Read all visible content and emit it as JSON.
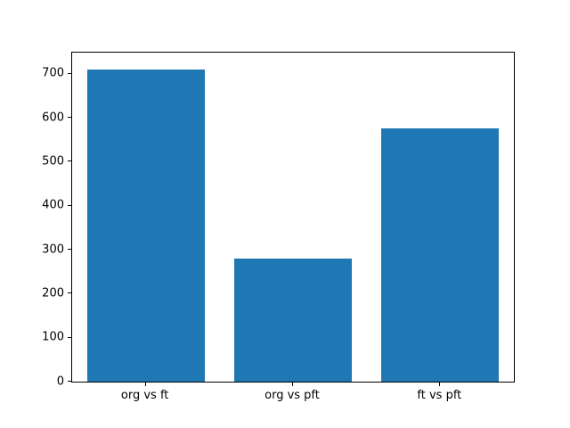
{
  "chart_data": {
    "type": "bar",
    "title": "",
    "xlabel": "",
    "ylabel": "",
    "categories": [
      "org vs ft",
      "org vs pft",
      "ft vs pft"
    ],
    "values": [
      710,
      280,
      575
    ],
    "ylim": [
      0,
      748
    ],
    "yticks": [
      0,
      100,
      200,
      300,
      400,
      500,
      600,
      700
    ],
    "bar_color": "#1f77b4",
    "grid": false,
    "legend": null
  }
}
